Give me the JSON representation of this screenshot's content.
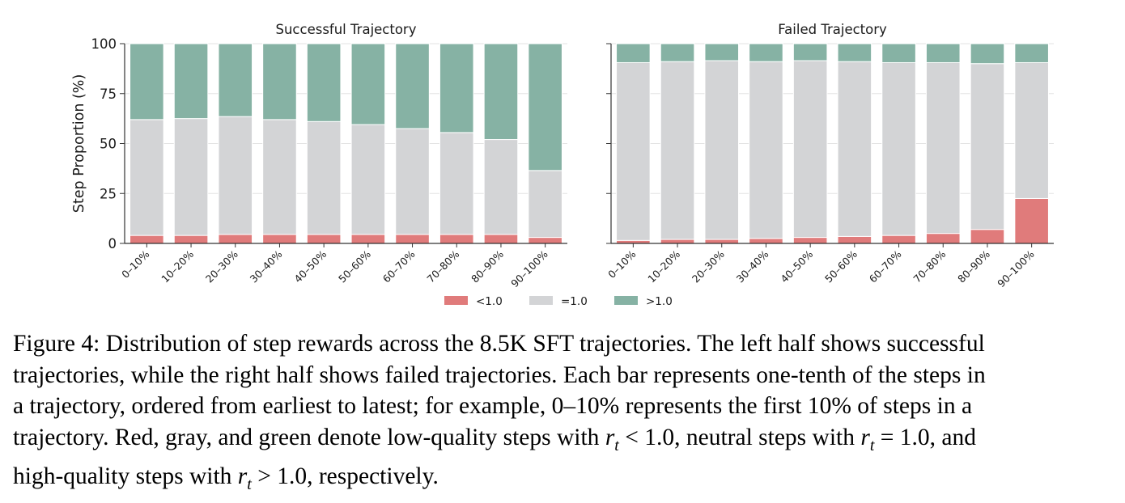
{
  "chart_data": [
    {
      "type": "bar",
      "stacked": true,
      "title": "Successful Trajectory",
      "ylabel": "Step Proportion (%)",
      "ylim": [
        0,
        100
      ],
      "yticks": [
        "0",
        "25",
        "50",
        "75",
        "100"
      ],
      "grid": "y",
      "categories": [
        "0–10%",
        "10–20%",
        "20–30%",
        "30–40%",
        "40–50%",
        "50–60%",
        "60–70%",
        "70–80%",
        "80–90%",
        "90–100%"
      ],
      "series": [
        {
          "name": "<1.0",
          "color": "#e07b7b",
          "values": [
            4,
            4,
            4.5,
            4.5,
            4.5,
            4.5,
            4.5,
            4.5,
            4.5,
            3
          ]
        },
        {
          "name": "=1.0",
          "color": "#d3d4d6",
          "values": [
            58,
            58.5,
            59,
            57.5,
            56.5,
            55,
            53,
            51,
            47.5,
            33.5
          ]
        },
        {
          "name": ">1.0",
          "color": "#86b2a4",
          "values": [
            38,
            37.5,
            36.5,
            38,
            39,
            40.5,
            42.5,
            44.5,
            48,
            63.5
          ]
        }
      ]
    },
    {
      "type": "bar",
      "stacked": true,
      "title": "Failed Trajectory",
      "ylim": [
        0,
        100
      ],
      "grid": "y",
      "categories": [
        "0–10%",
        "10–20%",
        "20–30%",
        "30–40%",
        "40–50%",
        "50–60%",
        "60–70%",
        "70–80%",
        "80–90%",
        "90–100%"
      ],
      "series": [
        {
          "name": "<1.0",
          "color": "#e07b7b",
          "values": [
            1.5,
            2,
            2,
            2.5,
            3,
            3.5,
            4,
            5,
            7,
            22.5
          ]
        },
        {
          "name": "=1.0",
          "color": "#d3d4d6",
          "values": [
            89,
            89,
            89.5,
            88.5,
            88.5,
            87.5,
            86.5,
            85.5,
            83,
            68
          ]
        },
        {
          "name": ">1.0",
          "color": "#86b2a4",
          "values": [
            9.5,
            9,
            8.5,
            9,
            8.5,
            9,
            9.5,
            9.5,
            10,
            9.5
          ]
        }
      ]
    }
  ],
  "legend": {
    "position": "bottom-center",
    "items": [
      {
        "label": "<1.0",
        "color": "#e07b7b"
      },
      {
        "label": "=1.0",
        "color": "#d3d4d6"
      },
      {
        "label": ">1.0",
        "color": "#86b2a4"
      }
    ]
  },
  "caption": {
    "line1": "Figure 4: Distribution of step rewards across the 8.5K SFT trajectories. The left half shows successful",
    "line2": "trajectories, while the right half shows failed trajectories. Each bar represents one-tenth of the steps in",
    "line3": "a trajectory, ordered from earliest to latest; for example, 0–10% represents the first 10% of steps in a",
    "line4_a": "trajectory. Red, gray, and green denote low-quality steps with ",
    "math_rt1": "r",
    "math_t": "t",
    "math_lt": " < 1.0",
    "line4_b": ", neutral steps with ",
    "math_eq": " = 1.0",
    "line4_c": ", and",
    "line5_a": "high-quality steps with ",
    "math_gt": " > 1.0",
    "line5_b": ", respectively."
  }
}
